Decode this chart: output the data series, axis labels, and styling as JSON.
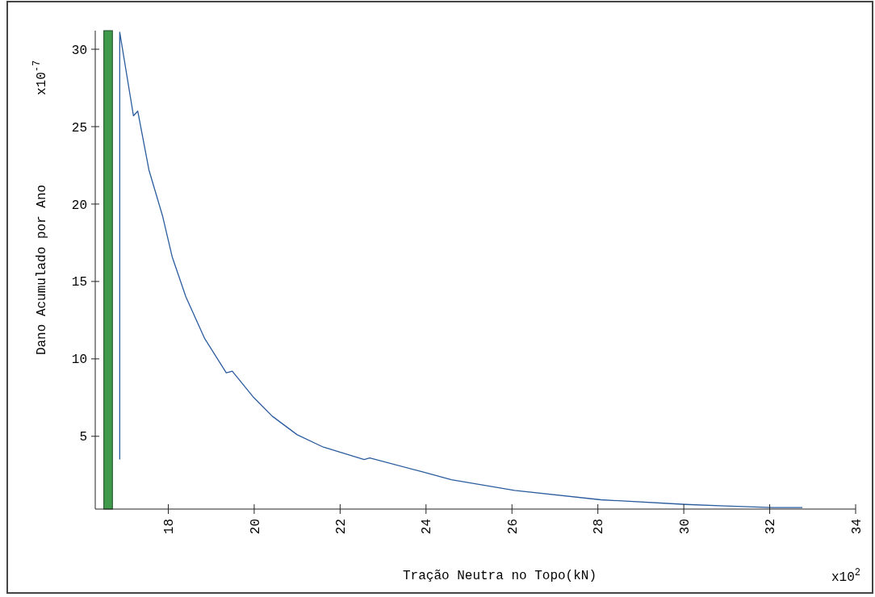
{
  "chart_data": {
    "type": "line",
    "xlabel": "Tração Neutra no Topo(kN)",
    "ylabel": "Dano Acumulado por Ano",
    "annotations": [
      "x10$^{-7}$",
      "x10$^{2}$"
    ],
    "xlim": [
      16.3,
      34
    ],
    "xticks": [
      18,
      20,
      22,
      24,
      26,
      28,
      30,
      32,
      34
    ],
    "ylim": [
      0.3,
      31.2
    ],
    "yticks": [
      5,
      10,
      15,
      20,
      25,
      30
    ],
    "grid": false,
    "marker": "none",
    "line_style": "solid",
    "bands": [
      {
        "axis": "x",
        "from": 16.5,
        "to": 16.7,
        "color": "#3f9a4c"
      }
    ],
    "series": [
      {
        "color": "#2b5c9e",
        "x": [
          16.87,
          16.87,
          16.87,
          16.87,
          16.87,
          17.19,
          17.29,
          17.55,
          17.87,
          18.09,
          18.41,
          18.85,
          19.35,
          19.49,
          19.99,
          20.42,
          21.0,
          21.61,
          22.56,
          22.69,
          23.92,
          24.59,
          26.06,
          28.07,
          30.04,
          30.96,
          32.05,
          32.76
        ],
        "values": [
          3.5,
          8.0,
          17.4,
          26.7,
          31.1,
          25.7,
          26.0,
          22.2,
          19.2,
          16.6,
          14.0,
          11.3,
          9.1,
          9.2,
          7.5,
          6.3,
          5.1,
          4.3,
          3.5,
          3.6,
          2.7,
          2.2,
          1.5,
          0.9,
          0.6,
          0.5,
          0.4,
          0.4
        ]
      }
    ]
  }
}
